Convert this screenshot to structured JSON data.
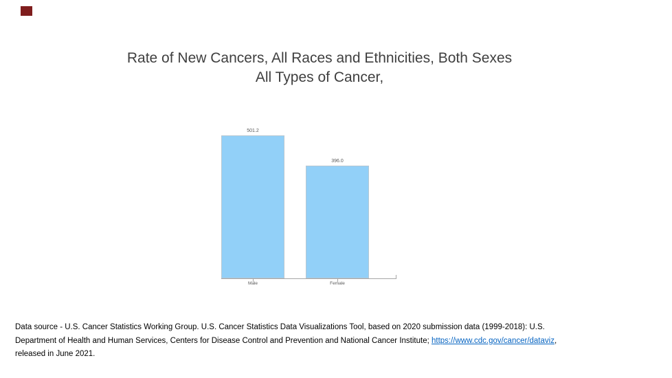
{
  "accent_square": {
    "color": "#7f1d1d"
  },
  "title": {
    "line1": "Rate of New Cancers, All Races and Ethnicities, Both Sexes",
    "line2": "All Types of Cancer,",
    "color": "#3f3f3f"
  },
  "chart_data": {
    "type": "bar",
    "title": "Rate of New Cancers, All Races and Ethnicities, Both Sexes — All Types of Cancer,",
    "categories": [
      "Male",
      "Female"
    ],
    "values": [
      501.2,
      396.0
    ],
    "value_labels": [
      "501.2",
      "396.0"
    ],
    "xlabel": "",
    "ylabel": "",
    "ylim": [
      0,
      560
    ],
    "grid": false,
    "legend_position": "none",
    "bar_color": "#92d0f8",
    "bar_border_color": "#b5c7d3",
    "axis_color": "#a6a6a6",
    "label_color": "#595959"
  },
  "footer": {
    "line1": "Data source - U.S. Cancer Statistics Working Group. U.S. Cancer Statistics Data Visualizations Tool, based on 2020 submission data (1999-2018): U.S.",
    "line2_prefix": "Department of Health and Human Services, Centers for Disease Control and Prevention and National Cancer Institute; ",
    "link_text": "https://www.cdc.gov/cancer/dataviz",
    "line2_suffix": ",",
    "line3": "released in June 2021.",
    "link_color": "#0563c1"
  }
}
